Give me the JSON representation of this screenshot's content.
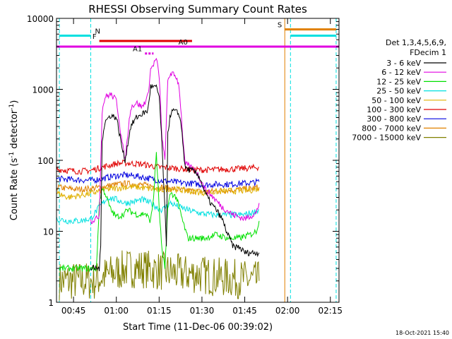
{
  "chart_data": {
    "type": "line",
    "title": "RHESSI Observing Summary Count Rates",
    "xlabel": "Start Time (11-Dec-06 00:39:02)",
    "ylabel_main": "Count Rate (s",
    "ylabel_sup1": "-1",
    "ylabel_mid": " detector",
    "ylabel_sup2": "-1",
    "ylabel_end": ")",
    "x_units": "minutes since 00:39:02",
    "xlim": [
      0,
      99
    ],
    "ylim": [
      1,
      10000
    ],
    "yscale": "log",
    "x_ticks": [
      {
        "t": 5.97,
        "label": "00:45"
      },
      {
        "t": 20.97,
        "label": "01:00"
      },
      {
        "t": 35.97,
        "label": "01:15"
      },
      {
        "t": 50.97,
        "label": "01:30"
      },
      {
        "t": 65.97,
        "label": "01:45"
      },
      {
        "t": 80.97,
        "label": "02:00"
      },
      {
        "t": 95.97,
        "label": "02:15"
      }
    ],
    "y_ticks": [
      {
        "v": 1,
        "label": "1"
      },
      {
        "v": 10,
        "label": "10"
      },
      {
        "v": 100,
        "label": "100"
      },
      {
        "v": 1000,
        "label": "1000"
      },
      {
        "v": 10000,
        "label": "10000"
      }
    ],
    "legend": {
      "position": "right",
      "header": [
        "Det 1,3,4,5,6,9,",
        "FDecim 1"
      ],
      "entries": [
        {
          "label": "3 - 6 keV",
          "color": "#000000"
        },
        {
          "label": "6 - 12 keV",
          "color": "#e000e0"
        },
        {
          "label": "12 - 25 keV",
          "color": "#00e000"
        },
        {
          "label": "25 - 50 keV",
          "color": "#00e0e0"
        },
        {
          "label": "50 - 100 keV",
          "color": "#e0b000"
        },
        {
          "label": "100 - 300 keV",
          "color": "#e00000"
        },
        {
          "label": "300 - 800 keV",
          "color": "#0000e0"
        },
        {
          "label": "800 - 7000 keV",
          "color": "#e08000"
        },
        {
          "label": "7000 - 15000 keV",
          "color": "#808000"
        }
      ]
    },
    "series": [
      {
        "name": "3 - 6 keV",
        "color": "#000000",
        "points": [
          [
            12,
            3
          ],
          [
            15,
            3
          ],
          [
            15.5,
            6
          ],
          [
            16,
            200
          ],
          [
            17,
            350
          ],
          [
            19,
            430
          ],
          [
            21,
            400
          ],
          [
            23,
            150
          ],
          [
            24,
            100
          ],
          [
            26,
            300
          ],
          [
            28,
            400
          ],
          [
            30,
            450
          ],
          [
            32,
            500
          ],
          [
            33,
            1100
          ],
          [
            35,
            1050
          ],
          [
            36,
            800
          ],
          [
            37,
            150
          ],
          [
            38,
            20
          ],
          [
            38.5,
            6
          ],
          [
            39,
            250
          ],
          [
            40,
            450
          ],
          [
            41,
            500
          ],
          [
            43,
            450
          ],
          [
            44,
            250
          ],
          [
            45,
            80
          ],
          [
            46,
            75
          ],
          [
            48,
            70
          ],
          [
            50,
            60
          ],
          [
            52,
            35
          ],
          [
            54,
            25
          ],
          [
            56,
            20
          ],
          [
            58,
            15
          ],
          [
            60,
            9
          ],
          [
            62,
            6
          ],
          [
            64,
            6
          ],
          [
            66,
            5
          ],
          [
            68,
            5
          ],
          [
            70,
            5
          ],
          [
            71,
            5
          ]
        ]
      },
      {
        "name": "6 - 12 keV",
        "color": "#e000e0",
        "points": [
          [
            12,
            14
          ],
          [
            14,
            15
          ],
          [
            15,
            17
          ],
          [
            16,
            500
          ],
          [
            17,
            780
          ],
          [
            19,
            850
          ],
          [
            21,
            700
          ],
          [
            23,
            180
          ],
          [
            24,
            100
          ],
          [
            26,
            560
          ],
          [
            28,
            650
          ],
          [
            30,
            560
          ],
          [
            32,
            800
          ],
          [
            33,
            1900
          ],
          [
            35,
            2700
          ],
          [
            36,
            1500
          ],
          [
            37,
            200
          ],
          [
            38,
            100
          ],
          [
            39,
            1300
          ],
          [
            40,
            1700
          ],
          [
            42,
            1500
          ],
          [
            43,
            1100
          ],
          [
            44,
            300
          ],
          [
            45,
            90
          ],
          [
            47,
            80
          ],
          [
            49,
            70
          ],
          [
            52,
            40
          ],
          [
            55,
            30
          ],
          [
            58,
            22
          ],
          [
            62,
            17
          ],
          [
            66,
            15
          ],
          [
            70,
            18
          ],
          [
            71,
            25
          ]
        ]
      },
      {
        "name": "12 - 25 keV",
        "color": "#00e000",
        "points": [
          [
            1,
            3
          ],
          [
            12,
            3
          ],
          [
            14,
            3
          ],
          [
            15,
            25
          ],
          [
            16,
            40
          ],
          [
            17,
            35
          ],
          [
            19,
            20
          ],
          [
            21,
            16
          ],
          [
            23,
            17
          ],
          [
            25,
            20
          ],
          [
            27,
            18
          ],
          [
            29,
            17
          ],
          [
            31,
            18
          ],
          [
            33,
            14
          ],
          [
            34,
            30
          ],
          [
            35,
            130
          ],
          [
            36,
            20
          ],
          [
            37,
            5
          ],
          [
            38,
            3
          ],
          [
            39,
            22
          ],
          [
            40,
            35
          ],
          [
            42,
            30
          ],
          [
            44,
            15
          ],
          [
            46,
            8
          ],
          [
            48,
            8
          ],
          [
            52,
            8
          ],
          [
            56,
            9
          ],
          [
            60,
            8
          ],
          [
            64,
            8
          ],
          [
            68,
            9
          ],
          [
            70,
            10
          ],
          [
            71,
            14
          ]
        ]
      },
      {
        "name": "25 - 50 keV",
        "color": "#00e0e0",
        "points": [
          [
            0,
            15
          ],
          [
            4,
            14
          ],
          [
            8,
            14
          ],
          [
            12,
            15
          ],
          [
            15,
            22
          ],
          [
            18,
            30
          ],
          [
            21,
            28
          ],
          [
            24,
            25
          ],
          [
            27,
            26
          ],
          [
            30,
            28
          ],
          [
            33,
            25
          ],
          [
            35,
            22
          ],
          [
            37,
            20
          ],
          [
            40,
            25
          ],
          [
            43,
            22
          ],
          [
            46,
            20
          ],
          [
            50,
            18
          ],
          [
            55,
            17
          ],
          [
            60,
            17
          ],
          [
            65,
            17
          ],
          [
            68,
            18
          ],
          [
            71,
            20
          ]
        ]
      },
      {
        "name": "50 - 100 keV",
        "color": "#e0b000",
        "points": [
          [
            0,
            35
          ],
          [
            4,
            30
          ],
          [
            8,
            32
          ],
          [
            12,
            34
          ],
          [
            16,
            38
          ],
          [
            20,
            40
          ],
          [
            24,
            42
          ],
          [
            28,
            42
          ],
          [
            32,
            40
          ],
          [
            36,
            38
          ],
          [
            40,
            40
          ],
          [
            44,
            38
          ],
          [
            48,
            36
          ],
          [
            52,
            35
          ],
          [
            56,
            36
          ],
          [
            60,
            37
          ],
          [
            64,
            37
          ],
          [
            68,
            38
          ],
          [
            71,
            40
          ]
        ]
      },
      {
        "name": "100 - 300 keV",
        "color": "#e00000",
        "points": [
          [
            0,
            75
          ],
          [
            4,
            72
          ],
          [
            8,
            70
          ],
          [
            12,
            72
          ],
          [
            15,
            78
          ],
          [
            18,
            84
          ],
          [
            21,
            90
          ],
          [
            24,
            92
          ],
          [
            27,
            90
          ],
          [
            30,
            88
          ],
          [
            33,
            84
          ],
          [
            36,
            80
          ],
          [
            40,
            78
          ],
          [
            44,
            76
          ],
          [
            48,
            74
          ],
          [
            52,
            73
          ],
          [
            56,
            74
          ],
          [
            60,
            75
          ],
          [
            64,
            76
          ],
          [
            68,
            78
          ],
          [
            71,
            80
          ]
        ]
      },
      {
        "name": "300 - 800 keV",
        "color": "#0000e0",
        "points": [
          [
            0,
            55
          ],
          [
            4,
            54
          ],
          [
            8,
            53
          ],
          [
            12,
            52
          ],
          [
            16,
            55
          ],
          [
            20,
            60
          ],
          [
            24,
            62
          ],
          [
            28,
            60
          ],
          [
            32,
            56
          ],
          [
            36,
            52
          ],
          [
            40,
            50
          ],
          [
            44,
            48
          ],
          [
            48,
            47
          ],
          [
            52,
            45
          ],
          [
            56,
            46
          ],
          [
            60,
            46
          ],
          [
            64,
            47
          ],
          [
            68,
            48
          ],
          [
            71,
            50
          ]
        ]
      },
      {
        "name": "800 - 7000 keV",
        "color": "#e08000",
        "points": [
          [
            0,
            42
          ],
          [
            4,
            40
          ],
          [
            8,
            39
          ],
          [
            12,
            40
          ],
          [
            16,
            42
          ],
          [
            20,
            45
          ],
          [
            24,
            47
          ],
          [
            28,
            46
          ],
          [
            32,
            44
          ],
          [
            36,
            42
          ],
          [
            40,
            40
          ],
          [
            44,
            38
          ],
          [
            48,
            37
          ],
          [
            52,
            36
          ],
          [
            56,
            37
          ],
          [
            60,
            38
          ],
          [
            64,
            39
          ],
          [
            68,
            40
          ],
          [
            71,
            42
          ]
        ]
      },
      {
        "name": "7000 - 15000 keV",
        "color": "#808000",
        "points": [
          [
            1,
            2
          ],
          [
            8,
            2
          ],
          [
            14,
            2
          ],
          [
            15,
            2.2
          ],
          [
            20,
            2.6
          ],
          [
            25,
            3
          ],
          [
            30,
            3
          ],
          [
            35,
            2.8
          ],
          [
            40,
            2.6
          ],
          [
            45,
            2.5
          ],
          [
            50,
            2.5
          ],
          [
            55,
            2.3
          ],
          [
            60,
            2.2
          ],
          [
            65,
            2.1
          ],
          [
            70,
            2
          ],
          [
            71,
            2
          ]
        ]
      }
    ],
    "annotations": [
      {
        "label": "N",
        "color": "#00e0e0",
        "t0": 1,
        "t1": 12,
        "v": 5700
      },
      {
        "label": "N",
        "color": "#00e0e0",
        "t0": 82,
        "t1": 98,
        "v": 5700
      },
      {
        "label": "F",
        "color": "#e00000",
        "t0": 15,
        "t1": 47.5,
        "v": 4800
      },
      {
        "label": "S",
        "color": "#e08000",
        "t0": 80,
        "t1": 98,
        "v": 7000
      },
      {
        "label": "A0",
        "color": "#e000e0",
        "t0": 0,
        "t1": 99,
        "v": 4000
      },
      {
        "label": "A1",
        "color": "#e000e0",
        "t0": 31,
        "t1": 34,
        "v": 3200
      }
    ],
    "vertical_markers": [
      {
        "t": 1,
        "color": "#00e0e0",
        "style": "dashed"
      },
      {
        "t": 12,
        "color": "#00e0e0",
        "style": "dashed"
      },
      {
        "t": 80,
        "color": "#e08000",
        "style": "solid"
      },
      {
        "t": 82,
        "color": "#00e0e0",
        "style": "dashed"
      },
      {
        "t": 98,
        "color": "#00e0e0",
        "style": "dashed"
      }
    ],
    "timestamp": "18-Oct-2021 15:40"
  }
}
